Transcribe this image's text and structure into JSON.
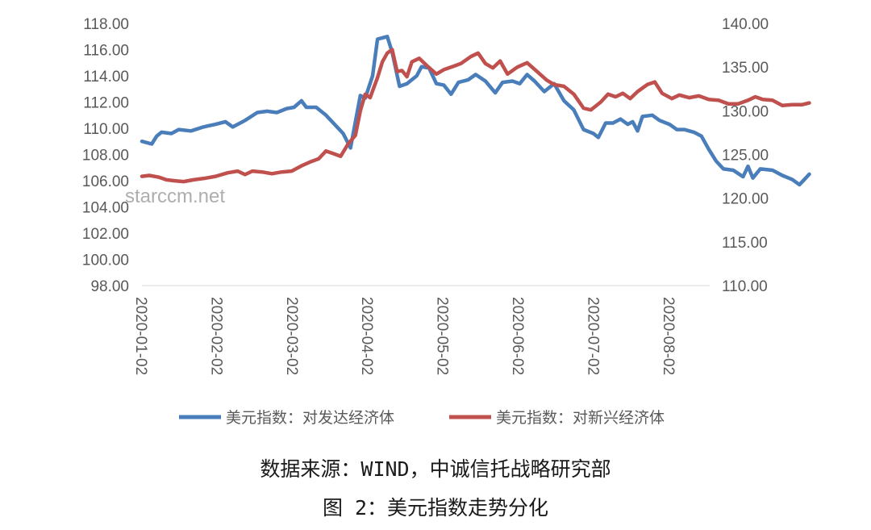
{
  "chart_data": {
    "type": "line",
    "title": "",
    "xlabel": "",
    "ylabel_left": "",
    "ylabel_right": "",
    "x_ticks": [
      "2020-01-02",
      "2020-02-02",
      "2020-03-02",
      "2020-04-02",
      "2020-05-02",
      "2020-06-02",
      "2020-07-02",
      "2020-08-02"
    ],
    "y_left": {
      "range": [
        98,
        118
      ],
      "ticks": [
        "98.00",
        "100.00",
        "102.00",
        "104.00",
        "106.00",
        "108.00",
        "110.00",
        "112.00",
        "114.00",
        "116.00",
        "118.00"
      ]
    },
    "y_right": {
      "range": [
        110,
        140
      ],
      "ticks": [
        "110.00",
        "115.00",
        "120.00",
        "125.00",
        "130.00",
        "135.00",
        "140.00"
      ]
    },
    "grid": false,
    "legend_position": "bottom",
    "x_start": "2020-01-02",
    "x_end": "2020-08-23",
    "series": [
      {
        "name": "美元指数：对发达经济体",
        "axis": "left",
        "color": "#4a7ebb",
        "points": [
          [
            "2020-01-02",
            109.0
          ],
          [
            "2020-01-06",
            108.8
          ],
          [
            "2020-01-08",
            109.4
          ],
          [
            "2020-01-10",
            109.7
          ],
          [
            "2020-01-14",
            109.6
          ],
          [
            "2020-01-17",
            109.9
          ],
          [
            "2020-01-22",
            109.8
          ],
          [
            "2020-01-27",
            110.1
          ],
          [
            "2020-02-01",
            110.3
          ],
          [
            "2020-02-05",
            110.5
          ],
          [
            "2020-02-08",
            110.1
          ],
          [
            "2020-02-13",
            110.6
          ],
          [
            "2020-02-18",
            111.2
          ],
          [
            "2020-02-22",
            111.3
          ],
          [
            "2020-02-26",
            111.2
          ],
          [
            "2020-03-01",
            111.5
          ],
          [
            "2020-03-04",
            111.6
          ],
          [
            "2020-03-07",
            112.1
          ],
          [
            "2020-03-09",
            111.6
          ],
          [
            "2020-03-13",
            111.6
          ],
          [
            "2020-03-17",
            111.0
          ],
          [
            "2020-03-21",
            110.2
          ],
          [
            "2020-03-24",
            109.6
          ],
          [
            "2020-03-27",
            108.5
          ],
          [
            "2020-03-29",
            110.5
          ],
          [
            "2020-03-31",
            112.5
          ],
          [
            "2020-04-02",
            112.3
          ],
          [
            "2020-04-05",
            114.0
          ],
          [
            "2020-04-07",
            116.8
          ],
          [
            "2020-04-09",
            116.9
          ],
          [
            "2020-04-11",
            117.0
          ],
          [
            "2020-04-13",
            115.8
          ],
          [
            "2020-04-16",
            113.2
          ],
          [
            "2020-04-19",
            113.4
          ],
          [
            "2020-04-23",
            114.0
          ],
          [
            "2020-04-25",
            114.7
          ],
          [
            "2020-04-28",
            114.6
          ],
          [
            "2020-05-01",
            113.4
          ],
          [
            "2020-05-04",
            113.3
          ],
          [
            "2020-05-07",
            112.6
          ],
          [
            "2020-05-10",
            113.5
          ],
          [
            "2020-05-14",
            113.7
          ],
          [
            "2020-05-17",
            114.1
          ],
          [
            "2020-05-21",
            113.6
          ],
          [
            "2020-05-25",
            112.7
          ],
          [
            "2020-05-28",
            113.5
          ],
          [
            "2020-06-01",
            113.6
          ],
          [
            "2020-06-04",
            113.4
          ],
          [
            "2020-06-07",
            114.1
          ],
          [
            "2020-06-10",
            113.6
          ],
          [
            "2020-06-14",
            112.8
          ],
          [
            "2020-06-18",
            113.4
          ],
          [
            "2020-06-22",
            112.1
          ],
          [
            "2020-06-26",
            111.4
          ],
          [
            "2020-06-30",
            109.9
          ],
          [
            "2020-07-04",
            109.6
          ],
          [
            "2020-07-06",
            109.3
          ],
          [
            "2020-07-09",
            110.4
          ],
          [
            "2020-07-12",
            110.4
          ],
          [
            "2020-07-15",
            110.7
          ],
          [
            "2020-07-18",
            110.3
          ],
          [
            "2020-07-20",
            110.5
          ],
          [
            "2020-07-22",
            109.8
          ],
          [
            "2020-07-24",
            110.9
          ],
          [
            "2020-07-28",
            111.0
          ],
          [
            "2020-07-31",
            110.6
          ],
          [
            "2020-08-04",
            110.3
          ],
          [
            "2020-08-07",
            109.9
          ],
          [
            "2020-08-10",
            109.9
          ],
          [
            "2020-08-14",
            109.7
          ],
          [
            "2020-08-17",
            109.4
          ],
          [
            "2020-08-20",
            108.4
          ],
          [
            "2020-08-23",
            107.5
          ],
          [
            "2020-08-26",
            106.9
          ],
          [
            "2020-08-30",
            106.8
          ],
          [
            "2020-09-03",
            106.3
          ],
          [
            "2020-09-05",
            107.1
          ],
          [
            "2020-09-07",
            106.2
          ],
          [
            "2020-09-10",
            106.9
          ],
          [
            "2020-09-15",
            106.8
          ],
          [
            "2020-09-19",
            106.4
          ],
          [
            "2020-09-23",
            106.1
          ],
          [
            "2020-09-26",
            105.7
          ],
          [
            "2020-09-30",
            106.5
          ]
        ]
      },
      {
        "name": "美元指数：对新兴经济体",
        "axis": "right",
        "color": "#c0504d",
        "points": [
          [
            "2020-01-02",
            122.5
          ],
          [
            "2020-01-05",
            122.6
          ],
          [
            "2020-01-09",
            122.4
          ],
          [
            "2020-01-12",
            122.1
          ],
          [
            "2020-01-15",
            122.0
          ],
          [
            "2020-01-19",
            121.9
          ],
          [
            "2020-01-23",
            122.1
          ],
          [
            "2020-01-28",
            122.3
          ],
          [
            "2020-02-01",
            122.5
          ],
          [
            "2020-02-06",
            122.9
          ],
          [
            "2020-02-10",
            123.1
          ],
          [
            "2020-02-13",
            122.7
          ],
          [
            "2020-02-16",
            123.1
          ],
          [
            "2020-02-20",
            123.0
          ],
          [
            "2020-02-24",
            122.8
          ],
          [
            "2020-02-28",
            123.0
          ],
          [
            "2020-03-03",
            123.1
          ],
          [
            "2020-03-07",
            123.7
          ],
          [
            "2020-03-11",
            124.2
          ],
          [
            "2020-03-14",
            124.5
          ],
          [
            "2020-03-17",
            125.4
          ],
          [
            "2020-03-20",
            125.1
          ],
          [
            "2020-03-23",
            124.8
          ],
          [
            "2020-03-26",
            126.2
          ],
          [
            "2020-03-29",
            127.2
          ],
          [
            "2020-03-31",
            130.0
          ],
          [
            "2020-04-02",
            131.9
          ],
          [
            "2020-04-04",
            131.5
          ],
          [
            "2020-04-07",
            133.8
          ],
          [
            "2020-04-09",
            135.6
          ],
          [
            "2020-04-11",
            136.6
          ],
          [
            "2020-04-13",
            137.0
          ],
          [
            "2020-04-15",
            134.5
          ],
          [
            "2020-04-17",
            134.6
          ],
          [
            "2020-04-19",
            133.9
          ],
          [
            "2020-04-21",
            135.6
          ],
          [
            "2020-04-24",
            136.0
          ],
          [
            "2020-04-27",
            135.2
          ],
          [
            "2020-05-01",
            134.2
          ],
          [
            "2020-05-04",
            134.7
          ],
          [
            "2020-05-08",
            135.1
          ],
          [
            "2020-05-11",
            135.4
          ],
          [
            "2020-05-15",
            136.2
          ],
          [
            "2020-05-18",
            136.6
          ],
          [
            "2020-05-21",
            135.4
          ],
          [
            "2020-05-24",
            134.9
          ],
          [
            "2020-05-27",
            135.7
          ],
          [
            "2020-05-30",
            134.2
          ],
          [
            "2020-06-03",
            135.0
          ],
          [
            "2020-06-07",
            135.5
          ],
          [
            "2020-06-11",
            134.5
          ],
          [
            "2020-06-15",
            133.5
          ],
          [
            "2020-06-18",
            133.0
          ],
          [
            "2020-06-22",
            132.8
          ],
          [
            "2020-06-26",
            131.9
          ],
          [
            "2020-06-30",
            130.3
          ],
          [
            "2020-07-03",
            130.1
          ],
          [
            "2020-07-07",
            131.0
          ],
          [
            "2020-07-10",
            131.9
          ],
          [
            "2020-07-13",
            131.6
          ],
          [
            "2020-07-16",
            132.0
          ],
          [
            "2020-07-19",
            131.4
          ],
          [
            "2020-07-22",
            132.2
          ],
          [
            "2020-07-26",
            133.0
          ],
          [
            "2020-07-29",
            133.3
          ],
          [
            "2020-08-01",
            132.0
          ],
          [
            "2020-08-05",
            131.4
          ],
          [
            "2020-08-08",
            131.8
          ],
          [
            "2020-08-12",
            131.5
          ],
          [
            "2020-08-16",
            131.7
          ],
          [
            "2020-08-20",
            131.3
          ],
          [
            "2020-08-24",
            131.2
          ],
          [
            "2020-08-28",
            130.8
          ],
          [
            "2020-09-01",
            130.8
          ],
          [
            "2020-09-05",
            131.2
          ],
          [
            "2020-09-08",
            131.6
          ],
          [
            "2020-09-11",
            131.3
          ],
          [
            "2020-09-15",
            131.2
          ],
          [
            "2020-09-19",
            130.6
          ],
          [
            "2020-09-23",
            130.7
          ],
          [
            "2020-09-27",
            130.7
          ],
          [
            "2020-09-30",
            130.9
          ]
        ]
      }
    ]
  },
  "captions": {
    "source": "数据来源：WIND，中诚信托战略研究部",
    "figure": "图 2：美元指数走势分化"
  },
  "watermark": "starccm.net"
}
